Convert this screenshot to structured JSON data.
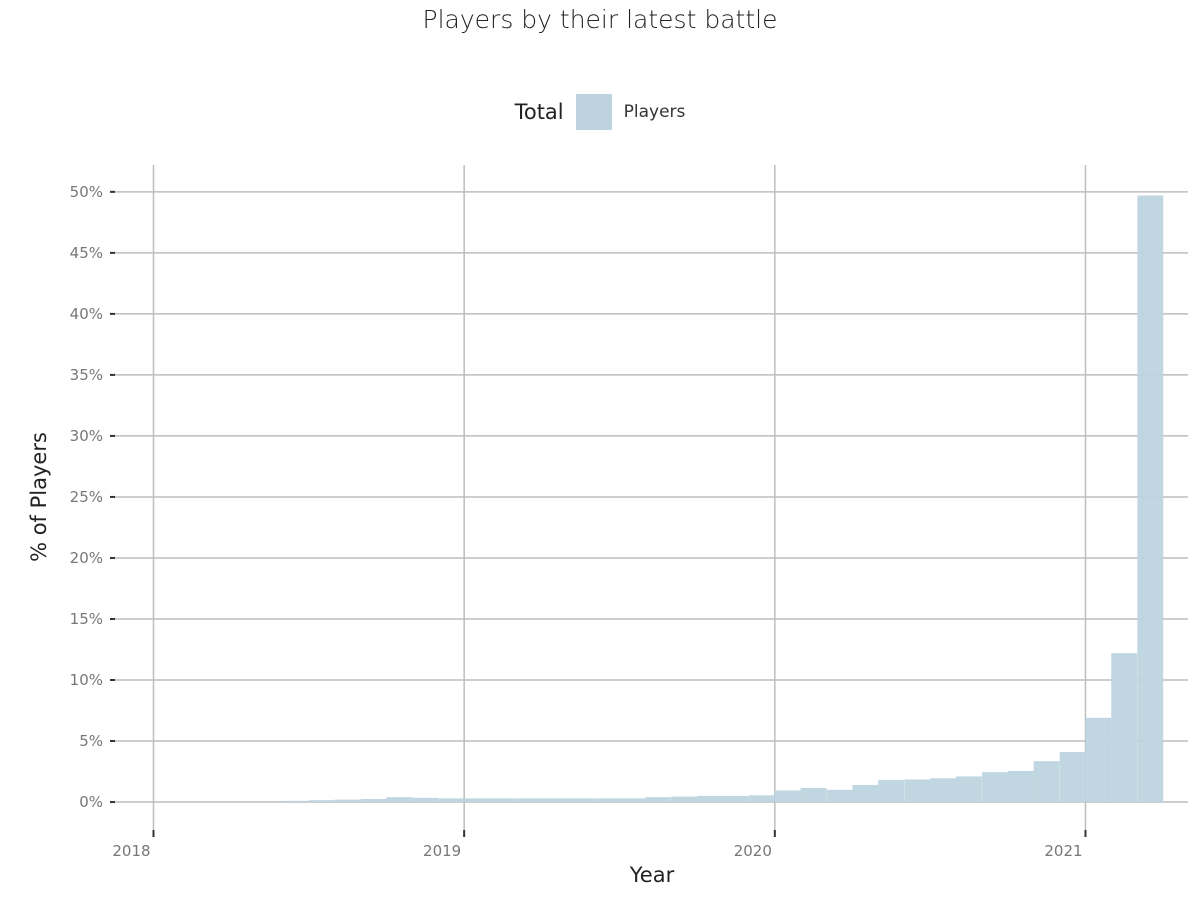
{
  "chart_data": {
    "type": "bar",
    "title": "Players by their latest battle",
    "xlabel": "Year",
    "ylabel": "% of Players",
    "legend": {
      "title": "Total",
      "entries": [
        "Players"
      ],
      "placement": "top"
    },
    "x_ticks": [
      "2018",
      "2019",
      "2020",
      "2021"
    ],
    "x_tick_values": [
      2018,
      2019,
      2020,
      2021
    ],
    "y_ticks": [
      "0%",
      "5%",
      "10%",
      "15%",
      "20%",
      "25%",
      "30%",
      "35%",
      "40%",
      "45%",
      "50%"
    ],
    "y_tick_values": [
      0,
      5,
      10,
      15,
      20,
      25,
      30,
      35,
      40,
      45,
      50
    ],
    "xlim": [
      2017.86,
      2021.33
    ],
    "ylim": [
      -2.7,
      52.2
    ],
    "bin_width_years": 0.0833,
    "series": [
      {
        "name": "Players",
        "bin_starts": [
          2018.417,
          2018.5,
          2018.583,
          2018.667,
          2018.75,
          2018.833,
          2018.917,
          2019.0,
          2019.083,
          2019.167,
          2019.25,
          2019.333,
          2019.417,
          2019.5,
          2019.583,
          2019.667,
          2019.75,
          2019.833,
          2019.917,
          2020.0,
          2020.083,
          2020.167,
          2020.25,
          2020.333,
          2020.417,
          2020.5,
          2020.583,
          2020.667,
          2020.75,
          2020.833,
          2020.917,
          2021.0,
          2021.083
        ],
        "values": [
          0.1,
          0.15,
          0.2,
          0.25,
          0.4,
          0.35,
          0.3,
          0.3,
          0.3,
          0.3,
          0.3,
          0.3,
          0.3,
          0.3,
          0.4,
          0.45,
          0.5,
          0.5,
          0.55,
          0.95,
          1.15,
          1.0,
          1.4,
          1.8,
          1.85,
          1.95,
          2.1,
          2.45,
          2.55,
          3.35,
          4.1,
          6.9,
          12.2
        ]
      },
      {
        "name": "Players",
        "bin_starts": [
          2021.167
        ],
        "values": [
          49.7
        ]
      }
    ],
    "grid": true,
    "colors": {
      "bar": "#bdd4df",
      "grid": "#bdbdbd",
      "tick": "#333333"
    }
  }
}
